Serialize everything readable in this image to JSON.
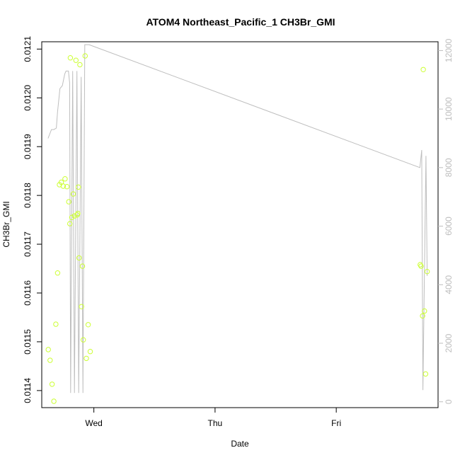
{
  "chart_data": {
    "type": "scatter",
    "title": "ATOM4 Northeast_Pacific_1 CH3Br_GMI",
    "xlabel": "Date",
    "ylabel": "CH3Br_GMI",
    "x_ticks": [
      "Wed",
      "Thu",
      "Fri"
    ],
    "x_tick_values": [
      0,
      1,
      2
    ],
    "xlim": [
      -0.43,
      2.84
    ],
    "ylim": [
      0.011365,
      0.012115
    ],
    "y_ticks": [
      "0.0114",
      "0.0115",
      "0.0116",
      "0.0117",
      "0.0118",
      "0.0119",
      "0.0120",
      "0.0121"
    ],
    "y_tick_values": [
      0.0114,
      0.0115,
      0.0116,
      0.0117,
      0.0118,
      0.0119,
      0.012,
      0.0121
    ],
    "y2_ticks": [
      "0",
      "2000",
      "4000",
      "6000",
      "8000",
      "10000",
      "12000"
    ],
    "y2_tick_values": [
      0,
      2000,
      4000,
      6000,
      8000,
      10000,
      12000
    ],
    "y2lim": [
      -200,
      12300
    ],
    "point_color": "#ccff33",
    "line_color": "#bebebe",
    "grid": false,
    "series": [
      {
        "type": "scatter",
        "points": [
          [
            -0.376,
            0.011484
          ],
          [
            -0.361,
            0.011462
          ],
          [
            -0.345,
            0.011413
          ],
          [
            -0.33,
            0.011378
          ],
          [
            -0.314,
            0.011536
          ],
          [
            -0.299,
            0.011641
          ],
          [
            -0.284,
            0.011822
          ],
          [
            -0.269,
            0.011827
          ],
          [
            -0.253,
            0.011819
          ],
          [
            -0.238,
            0.011834
          ],
          [
            -0.222,
            0.011818
          ],
          [
            -0.207,
            0.011787
          ],
          [
            -0.198,
            0.011742
          ],
          [
            -0.194,
            0.012082
          ],
          [
            -0.182,
            0.011755
          ],
          [
            -0.17,
            0.011803
          ],
          [
            -0.16,
            0.011758
          ],
          [
            -0.148,
            0.012077
          ],
          [
            -0.138,
            0.01176
          ],
          [
            -0.132,
            0.011763
          ],
          [
            -0.128,
            0.011817
          ],
          [
            -0.122,
            0.011672
          ],
          [
            -0.115,
            0.012068
          ],
          [
            -0.102,
            0.011572
          ],
          [
            -0.094,
            0.011655
          ],
          [
            -0.087,
            0.011504
          ],
          [
            -0.072,
            0.012086
          ],
          [
            -0.062,
            0.011466
          ],
          [
            -0.047,
            0.011535
          ],
          [
            -0.03,
            0.01148
          ],
          [
            2.693,
            0.011658
          ],
          [
            2.712,
            0.011553
          ],
          [
            2.7,
            0.011655
          ],
          [
            2.718,
            0.012058
          ],
          [
            2.728,
            0.011563
          ],
          [
            2.737,
            0.011434
          ],
          [
            2.75,
            0.011644
          ]
        ]
      },
      {
        "type": "line",
        "axis": "right",
        "points": [
          [
            -0.378,
            9000
          ],
          [
            -0.35,
            9300
          ],
          [
            -0.33,
            9300
          ],
          [
            -0.31,
            9350
          ],
          [
            -0.3,
            9900
          ],
          [
            -0.28,
            10700
          ],
          [
            -0.26,
            10800
          ],
          [
            -0.24,
            11200
          ],
          [
            -0.23,
            11300
          ],
          [
            -0.21,
            11300
          ],
          [
            -0.2,
            10900
          ],
          [
            -0.192,
            300
          ],
          [
            -0.175,
            11300
          ],
          [
            -0.16,
            300
          ],
          [
            -0.14,
            11300
          ],
          [
            -0.125,
            300
          ],
          [
            -0.105,
            11100
          ],
          [
            -0.09,
            300
          ],
          [
            -0.075,
            12200
          ],
          [
            -0.04,
            12200
          ],
          [
            2.69,
            8000
          ],
          [
            2.705,
            8600
          ],
          [
            2.715,
            400
          ],
          [
            2.74,
            8400
          ],
          [
            2.75,
            4300
          ]
        ]
      }
    ]
  }
}
